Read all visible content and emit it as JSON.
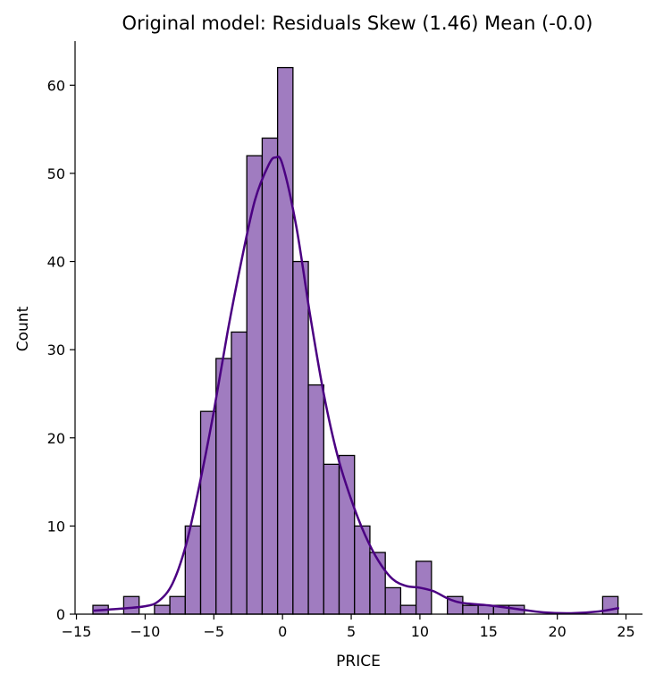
{
  "chart_data": {
    "type": "bar",
    "title": "Original model: Residuals Skew (1.46) Mean (-0.0)",
    "xlabel": "PRICE",
    "ylabel": "Count",
    "xlim": [
      -15.1,
      26.2
    ],
    "ylim": [
      0,
      65
    ],
    "xticks": [
      -15,
      -10,
      -5,
      0,
      5,
      10,
      15,
      20,
      25
    ],
    "xtick_labels": [
      "−15",
      "−10",
      "−5",
      "0",
      "5",
      "10",
      "15",
      "20",
      "25"
    ],
    "yticks": [
      0,
      10,
      20,
      30,
      40,
      50,
      60
    ],
    "ytick_labels": [
      "0",
      "10",
      "20",
      "30",
      "40",
      "50",
      "60"
    ],
    "bin_width": 1.12,
    "bins": [
      {
        "x": -13.8,
        "count": 1
      },
      {
        "x": -11.56,
        "count": 2
      },
      {
        "x": -9.32,
        "count": 1
      },
      {
        "x": -8.2,
        "count": 2
      },
      {
        "x": -7.08,
        "count": 10
      },
      {
        "x": -5.96,
        "count": 23
      },
      {
        "x": -4.84,
        "count": 29
      },
      {
        "x": -3.72,
        "count": 32
      },
      {
        "x": -2.6,
        "count": 52
      },
      {
        "x": -1.48,
        "count": 54
      },
      {
        "x": -0.36,
        "count": 62
      },
      {
        "x": 0.76,
        "count": 40
      },
      {
        "x": 1.88,
        "count": 26
      },
      {
        "x": 3.0,
        "count": 17
      },
      {
        "x": 4.12,
        "count": 18
      },
      {
        "x": 5.24,
        "count": 10
      },
      {
        "x": 6.36,
        "count": 7
      },
      {
        "x": 7.48,
        "count": 3
      },
      {
        "x": 8.6,
        "count": 1
      },
      {
        "x": 9.72,
        "count": 6
      },
      {
        "x": 12.0,
        "count": 2
      },
      {
        "x": 13.12,
        "count": 1
      },
      {
        "x": 14.24,
        "count": 1
      },
      {
        "x": 15.36,
        "count": 1
      },
      {
        "x": 16.48,
        "count": 1
      },
      {
        "x": 23.3,
        "count": 2
      }
    ],
    "kde": {
      "x": [
        -13.8,
        -12,
        -10,
        -9,
        -8,
        -7,
        -6,
        -5,
        -4,
        -3,
        -2,
        -1,
        -0.5,
        0,
        1,
        2,
        3,
        4,
        5,
        6,
        7,
        8,
        9,
        10,
        11,
        12,
        13,
        15,
        17,
        19,
        21,
        23,
        24.5
      ],
      "y": [
        0.4,
        0.6,
        0.9,
        1.5,
        3.5,
        8,
        15,
        23,
        32,
        40,
        47,
        51,
        51.8,
        51,
        44,
        34,
        25,
        18,
        13,
        9,
        6,
        4,
        3.2,
        3,
        2.6,
        1.8,
        1.3,
        1,
        0.6,
        0.2,
        0.1,
        0.3,
        0.7
      ]
    },
    "grid": false,
    "colors": {
      "bar_fill": "#a07cc0",
      "bar_edge": "#000000",
      "kde_line": "#4b0082"
    }
  }
}
